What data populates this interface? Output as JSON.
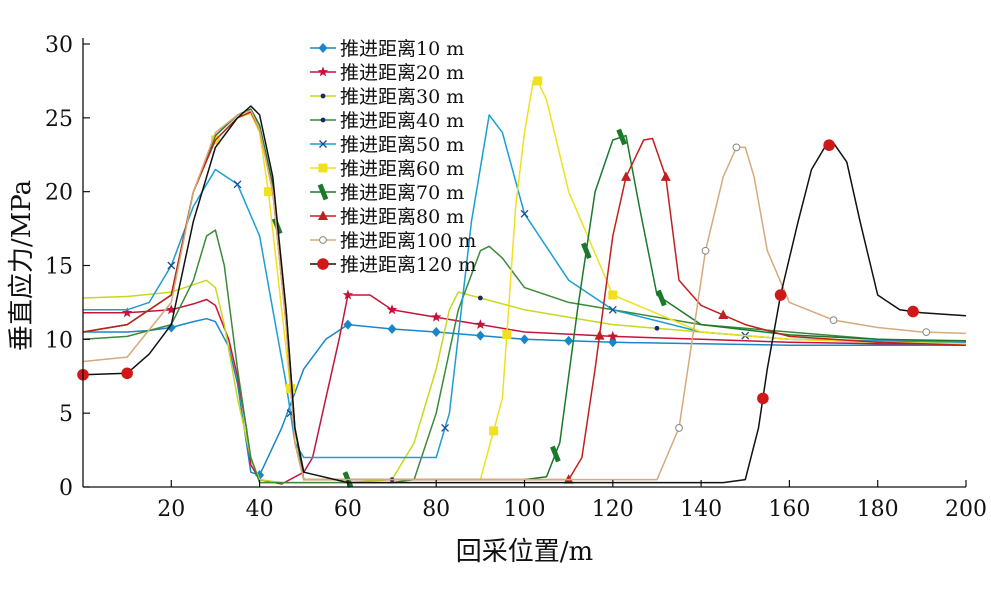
{
  "chart_data": {
    "type": "line",
    "title": "",
    "xlabel": "回采位置/m",
    "ylabel": "垂直应力/MPa",
    "xlim": [
      0,
      200
    ],
    "ylim": [
      0,
      30
    ],
    "xticks": [
      20,
      40,
      60,
      80,
      100,
      120,
      140,
      160,
      180,
      200
    ],
    "yticks": [
      0,
      5,
      10,
      15,
      20,
      25,
      30
    ],
    "grid": false,
    "legend_position": "top-left",
    "series": [
      {
        "name": "推进距离10 m",
        "color": "#1a86c8",
        "marker": "diamond",
        "marker_x": [
          20,
          40,
          60,
          70,
          80,
          90,
          100,
          110,
          120
        ],
        "x": [
          0,
          10,
          15,
          20,
          25,
          28,
          30,
          33,
          35,
          37,
          38,
          40,
          45,
          50,
          55,
          60,
          70,
          80,
          100,
          120,
          140,
          160,
          180,
          200
        ],
        "y": [
          10.5,
          10.5,
          10.6,
          10.8,
          11.2,
          11.4,
          11.2,
          9.5,
          7,
          3,
          1,
          0.8,
          4,
          8,
          10,
          11,
          10.7,
          10.5,
          10,
          9.8,
          9.7,
          9.6,
          9.6,
          9.6
        ]
      },
      {
        "name": "推进距离20 m",
        "color": "#c4143c",
        "marker": "star",
        "marker_x": [
          10,
          20,
          60,
          70,
          80,
          90,
          120
        ],
        "x": [
          0,
          10,
          15,
          20,
          25,
          28,
          30,
          33,
          35,
          37,
          38,
          40,
          45,
          50,
          52,
          55,
          58,
          60,
          65,
          70,
          80,
          90,
          100,
          120,
          140,
          160,
          180,
          200
        ],
        "y": [
          11.8,
          11.8,
          11.9,
          12,
          12.4,
          12.7,
          12.3,
          10,
          7.5,
          4,
          1.5,
          0.5,
          0.2,
          1,
          2,
          6,
          10,
          13,
          13,
          12,
          11.5,
          11,
          10.5,
          10.2,
          10,
          9.8,
          9.7,
          9.7
        ]
      },
      {
        "name": "推进距离30 m",
        "color": "#c8d81e",
        "marker": "dot",
        "marker_x": [
          70,
          90,
          130
        ],
        "x": [
          0,
          10,
          20,
          25,
          28,
          30,
          32,
          35,
          38,
          40,
          45,
          50,
          60,
          70,
          75,
          80,
          83,
          85,
          90,
          100,
          110,
          120,
          140,
          160,
          180,
          200
        ],
        "y": [
          12.8,
          12.9,
          13.2,
          13.7,
          14,
          13.5,
          11,
          6,
          2,
          0.5,
          0.3,
          0.3,
          0.3,
          0.5,
          3,
          8,
          12,
          13.2,
          12.8,
          12,
          11.5,
          11,
          10.5,
          10,
          9.8,
          9.7
        ]
      },
      {
        "name": "推进距离40 m",
        "color": "#3a8a3a",
        "marker": "dot",
        "marker_x": [],
        "x": [
          0,
          10,
          20,
          25,
          28,
          30,
          32,
          35,
          38,
          40,
          50,
          60,
          70,
          75,
          80,
          85,
          90,
          92,
          95,
          100,
          110,
          120,
          140,
          160,
          180,
          200
        ],
        "y": [
          10,
          10.2,
          11,
          14,
          17,
          17.4,
          15,
          8,
          2,
          0.3,
          0.3,
          0.3,
          0.3,
          0.5,
          5,
          12,
          16,
          16.3,
          15.5,
          13.5,
          12.5,
          12,
          11,
          10.5,
          10,
          9.8
        ]
      },
      {
        "name": "推进距离50 m",
        "color": "#1b9ed0",
        "marker": "x",
        "marker_x": [
          20,
          35,
          47,
          82,
          100,
          120,
          150
        ],
        "x": [
          0,
          10,
          15,
          20,
          25,
          30,
          35,
          40,
          43,
          46,
          48,
          50,
          52,
          60,
          70,
          75,
          80,
          83,
          88,
          92,
          95,
          100,
          110,
          120,
          140,
          160,
          180,
          200
        ],
        "y": [
          12,
          12,
          12.5,
          15,
          19,
          21.5,
          20.5,
          17,
          12,
          7,
          3,
          2,
          2,
          2,
          2,
          2,
          2,
          5,
          18,
          25.2,
          24,
          18.5,
          14,
          12,
          10.5,
          10,
          9.9,
          9.8
        ]
      },
      {
        "name": "推进距离60 m",
        "color": "#f0e020",
        "marker": "square",
        "marker_x": [
          30,
          42,
          47,
          93,
          96,
          103,
          120
        ],
        "x": [
          0,
          10,
          20,
          25,
          30,
          35,
          38,
          40,
          42,
          45,
          48,
          50,
          60,
          70,
          80,
          90,
          95,
          98,
          100,
          102,
          103,
          105,
          110,
          120,
          140,
          160,
          180,
          200
        ],
        "y": [
          10.5,
          11,
          13,
          20,
          23.5,
          25,
          25.3,
          24,
          20,
          12,
          4,
          0.5,
          0.5,
          0.5,
          0.5,
          0.5,
          6,
          19,
          24,
          27.5,
          27.5,
          26.2,
          20,
          13,
          10.5,
          10,
          9.8,
          9.7
        ]
      },
      {
        "name": "推进距离70 m",
        "color": "#1a7a2a",
        "marker": "tick",
        "marker_x": [
          44,
          60,
          107,
          114,
          122,
          131
        ],
        "x": [
          0,
          10,
          20,
          25,
          30,
          35,
          38,
          40,
          43,
          46,
          48,
          50,
          60,
          70,
          80,
          90,
          100,
          105,
          108,
          112,
          116,
          120,
          123,
          126,
          130,
          135,
          140,
          160,
          180,
          200
        ],
        "y": [
          10.5,
          11,
          13,
          20,
          23.8,
          25.2,
          25.6,
          24.5,
          20.5,
          12,
          4,
          0.5,
          0.5,
          0.5,
          0.5,
          0.5,
          0.5,
          0.7,
          3,
          12,
          20,
          23.5,
          23.8,
          19,
          13,
          12,
          11,
          10.3,
          10,
          9.9
        ]
      },
      {
        "name": "推进距离80 m",
        "color": "#c02020",
        "marker": "triangle",
        "marker_x": [
          110,
          117,
          123,
          132,
          145
        ],
        "x": [
          0,
          10,
          20,
          25,
          30,
          35,
          38,
          40,
          43,
          46,
          48,
          50,
          60,
          70,
          80,
          90,
          100,
          110,
          113,
          116,
          120,
          123,
          127,
          129,
          132,
          135,
          140,
          150,
          160,
          180,
          200
        ],
        "y": [
          10.5,
          11,
          13,
          20,
          23.5,
          25,
          25.4,
          24.2,
          20,
          11,
          3,
          0.5,
          0.5,
          0.5,
          0.5,
          0.5,
          0.5,
          0.5,
          2,
          8,
          17,
          21,
          23.5,
          23.6,
          21,
          14,
          12.3,
          11,
          10.2,
          9.8,
          9.6
        ]
      },
      {
        "name": "推进距离100 m",
        "color": "#d6aa7a",
        "marker": "circle-open",
        "marker_x": [
          135,
          141,
          148,
          170,
          191
        ],
        "x": [
          0,
          10,
          20,
          25,
          30,
          35,
          38,
          40,
          43,
          46,
          48,
          50,
          60,
          70,
          80,
          90,
          100,
          110,
          120,
          130,
          135,
          138,
          141,
          145,
          148,
          150,
          152,
          155,
          160,
          170,
          180,
          190,
          200
        ],
        "y": [
          8.5,
          8.8,
          12.5,
          20,
          24,
          25.2,
          25.5,
          24.2,
          20,
          11,
          3,
          0.5,
          0.5,
          0.5,
          0.5,
          0.5,
          0.5,
          0.5,
          0.5,
          0.5,
          4,
          10,
          16,
          21,
          23,
          23,
          21,
          16,
          12.5,
          11.3,
          10.8,
          10.5,
          10.4
        ]
      },
      {
        "name": "推进距离120 m",
        "color": "#111111",
        "marker": "circle-red",
        "marker_x": [
          0,
          10,
          154,
          158,
          169,
          188
        ],
        "x": [
          0,
          10,
          15,
          20,
          25,
          30,
          35,
          38,
          40,
          43,
          46,
          48,
          50,
          60,
          70,
          80,
          90,
          100,
          110,
          120,
          130,
          140,
          145,
          150,
          153,
          155,
          158,
          162,
          165,
          168,
          170,
          173,
          176,
          180,
          185,
          190,
          200
        ],
        "y": [
          7.6,
          7.7,
          9,
          11,
          18,
          23,
          25,
          25.8,
          25.2,
          21,
          12,
          4,
          1,
          0.3,
          0.3,
          0.3,
          0.3,
          0.3,
          0.3,
          0.3,
          0.3,
          0.3,
          0.3,
          0.5,
          4,
          8,
          13,
          18,
          21.5,
          23,
          23.3,
          22,
          18,
          13,
          12,
          11.8,
          11.6
        ]
      }
    ]
  }
}
